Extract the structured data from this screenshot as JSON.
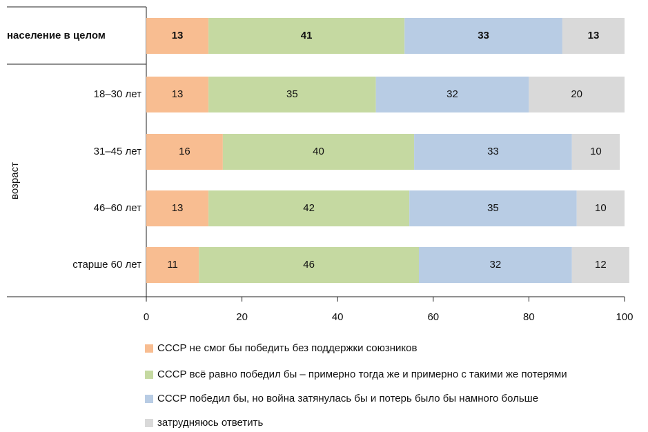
{
  "chart_data": {
    "type": "stacked_bar_horizontal",
    "categories": [
      "население в целом",
      "18–30 лет",
      "31–45 лет",
      "46–60 лет",
      "старше 60 лет"
    ],
    "group_label": "возраст",
    "series": [
      {
        "name": "СССР не смог бы победить без поддержки союзников",
        "color": "#f8bd91",
        "values": [
          13,
          13,
          16,
          13,
          11
        ]
      },
      {
        "name": "СССР всё равно победил бы – примерно тогда же и примерно с такими же потерями",
        "color": "#c5d9a1",
        "values": [
          41,
          35,
          40,
          42,
          46
        ]
      },
      {
        "name": "СССР победил бы, но война затянулась бы и потерь было бы намного больше",
        "color": "#b8cce4",
        "values": [
          33,
          32,
          33,
          35,
          32
        ]
      },
      {
        "name": "затрудняюсь ответить",
        "color": "#d9d9d9",
        "values": [
          13,
          20,
          10,
          10,
          12
        ]
      }
    ],
    "xlim": [
      0,
      100
    ],
    "xticks": [
      0,
      20,
      40,
      60,
      80,
      100
    ],
    "legend": "bottom"
  }
}
